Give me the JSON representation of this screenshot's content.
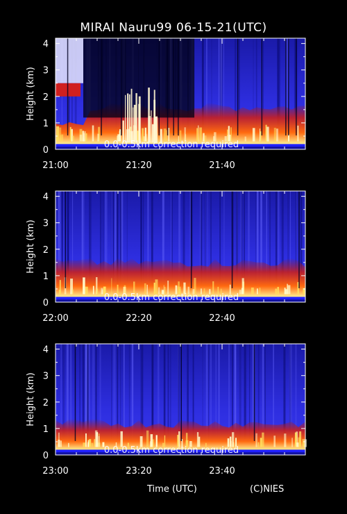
{
  "title": "MIRAI Nauru99 06-15-21(UTC)",
  "footer": {
    "xlabel": "Time (UTC)",
    "credit": "(C)NIES"
  },
  "chart_data": [
    {
      "type": "heatmap",
      "ylabel": "Height (km)",
      "ylim": [
        0,
        4.2
      ],
      "yticks": [
        "0",
        "1",
        "2",
        "3",
        "4"
      ],
      "xticks": [
        "21:00",
        "21:20",
        "21:40"
      ],
      "annotation": "0.0-0.5km correction required"
    },
    {
      "type": "heatmap",
      "ylabel": "Height (km)",
      "ylim": [
        0,
        4.2
      ],
      "yticks": [
        "0",
        "1",
        "2",
        "3",
        "4"
      ],
      "xticks": [
        "22:00",
        "22:20",
        "22:40"
      ],
      "annotation": "0.0-0.5km correction required"
    },
    {
      "type": "heatmap",
      "ylabel": "Height (km)",
      "ylim": [
        0,
        4.2
      ],
      "yticks": [
        "0",
        "1",
        "2",
        "3",
        "4"
      ],
      "xticks": [
        "23:00",
        "23:20",
        "23:40"
      ],
      "annotation": "0.0-0.5km correction required"
    }
  ],
  "colors": {
    "background": "#000000",
    "low": "#2a2ad8",
    "mid": "#d01a1a",
    "high": "#ffff90",
    "axis": "#ffffff"
  }
}
